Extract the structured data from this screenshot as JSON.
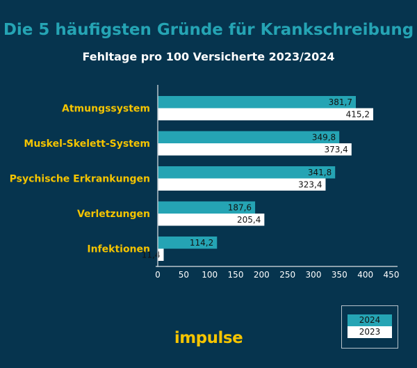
{
  "chart_data": {
    "type": "bar",
    "orientation": "horizontal",
    "title": "Die 5 häufigsten Gründe für Krankschreibung",
    "subtitle": "Fehltage pro 100 Versicherte 2023/2024",
    "categories": [
      "Atmungssystem",
      "Muskel-Skelett-System",
      "Psychische Erkrankungen",
      "Verletzungen",
      "Infektionen"
    ],
    "series": [
      {
        "name": "2024",
        "color": "#25a4b4",
        "values": [
          381.7,
          349.8,
          341.8,
          187.6,
          114.2
        ],
        "labels": [
          "381,7",
          "349,8",
          "341,8",
          "187,6",
          "114,2"
        ]
      },
      {
        "name": "2023",
        "color": "#ffffff",
        "values": [
          415.2,
          373.4,
          323.4,
          205.4,
          11.4
        ],
        "labels": [
          "415,2",
          "373,4",
          "323,4",
          "205,4",
          "11,4"
        ]
      }
    ],
    "xlim": [
      0,
      450
    ],
    "xticks": [
      "0",
      "50",
      "100",
      "150",
      "200",
      "250",
      "300",
      "350",
      "400",
      "450"
    ],
    "category_color": "#f5c400",
    "grid": false,
    "legend_placement": "bottom-right"
  },
  "logo": "impulse"
}
